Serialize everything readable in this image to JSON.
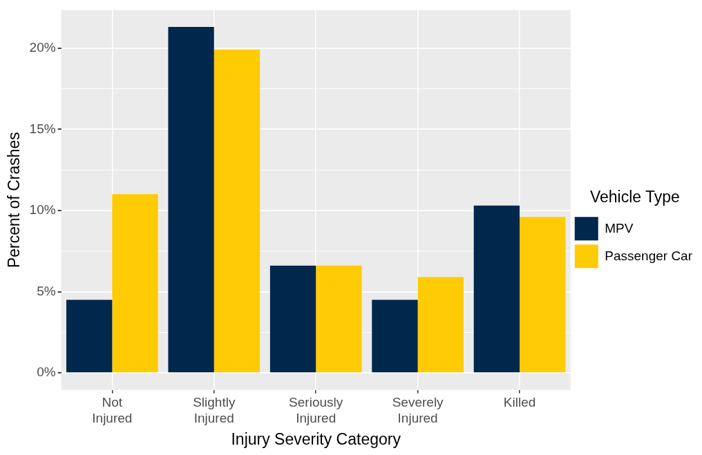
{
  "chart_data": {
    "type": "bar",
    "xlabel": "Injury Severity Category",
    "ylabel": "Percent of Crashes",
    "legend_title": "Vehicle Type",
    "categories": [
      "Not Injured",
      "Slightly Injured",
      "Seriously Injured",
      "Severely Injured",
      "Killed"
    ],
    "series": [
      {
        "name": "MPV",
        "color": "#00274c",
        "values": [
          4.5,
          21.3,
          6.6,
          4.5,
          10.3
        ]
      },
      {
        "name": "Passenger Car",
        "color": "#ffcb05",
        "values": [
          11.0,
          19.9,
          6.6,
          5.9,
          9.6
        ]
      }
    ],
    "ylim": [
      -1.05,
      22.35
    ],
    "yticks": [
      {
        "value": 0,
        "label": "0%"
      },
      {
        "value": 2.5,
        "label": null
      },
      {
        "value": 5,
        "label": "5%"
      },
      {
        "value": 7.5,
        "label": null
      },
      {
        "value": 10,
        "label": "10%"
      },
      {
        "value": 12.5,
        "label": null
      },
      {
        "value": 15,
        "label": "15%"
      },
      {
        "value": 17.5,
        "label": null
      },
      {
        "value": 20,
        "label": "20%"
      }
    ],
    "grid": true,
    "legend": "right"
  }
}
